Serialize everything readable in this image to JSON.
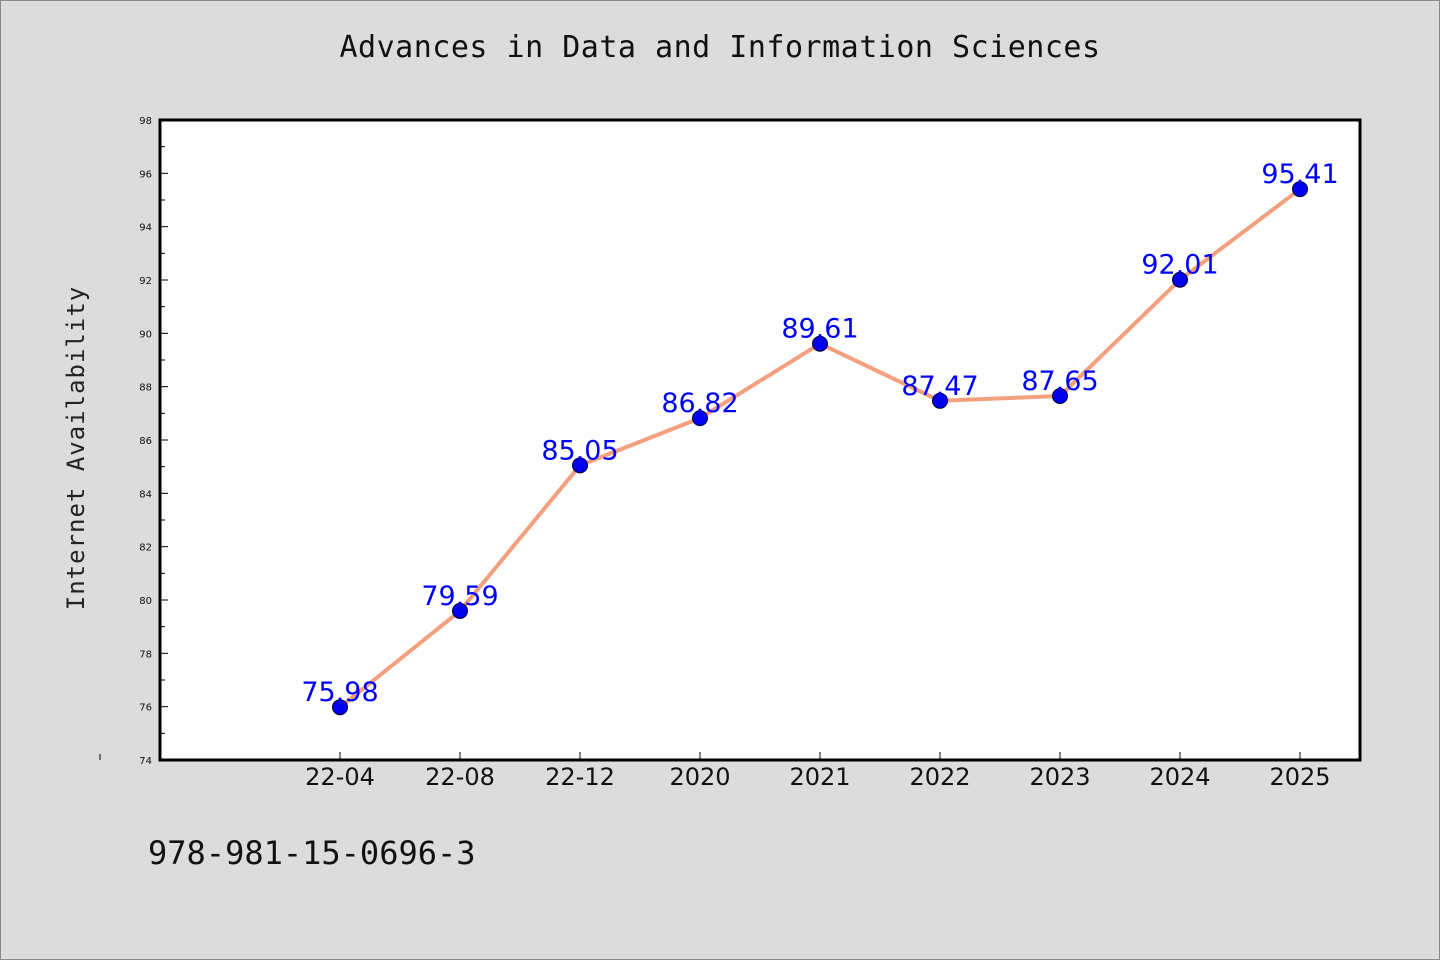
{
  "chart_data": {
    "type": "line",
    "title": "Advances in Data and Information Sciences",
    "xlabel": "",
    "ylabel": "Internet Availability",
    "categories": [
      "22-04",
      "22-08",
      "22-12",
      "2020",
      "2021",
      "2022",
      "2023",
      "2024",
      "2025"
    ],
    "values": [
      75.98,
      79.59,
      85.05,
      86.82,
      89.61,
      87.47,
      87.65,
      92.01,
      95.41
    ],
    "data_labels": [
      "75.98",
      "79.59",
      "85.05",
      "86.82",
      "89.61",
      "87.47",
      "87.65",
      "92.01",
      "95.41"
    ],
    "ylim": [
      74,
      98
    ],
    "yticks": [
      "74",
      "76",
      "78",
      "80",
      "82",
      "84",
      "86",
      "88",
      "90",
      "92",
      "94",
      "96",
      "98"
    ],
    "line_color": "#f4a07f",
    "marker_color": "#0000ee",
    "label_color": "#0000ff",
    "grid": false,
    "legend": "none"
  },
  "footer_text": "978-981-15-0696-3"
}
